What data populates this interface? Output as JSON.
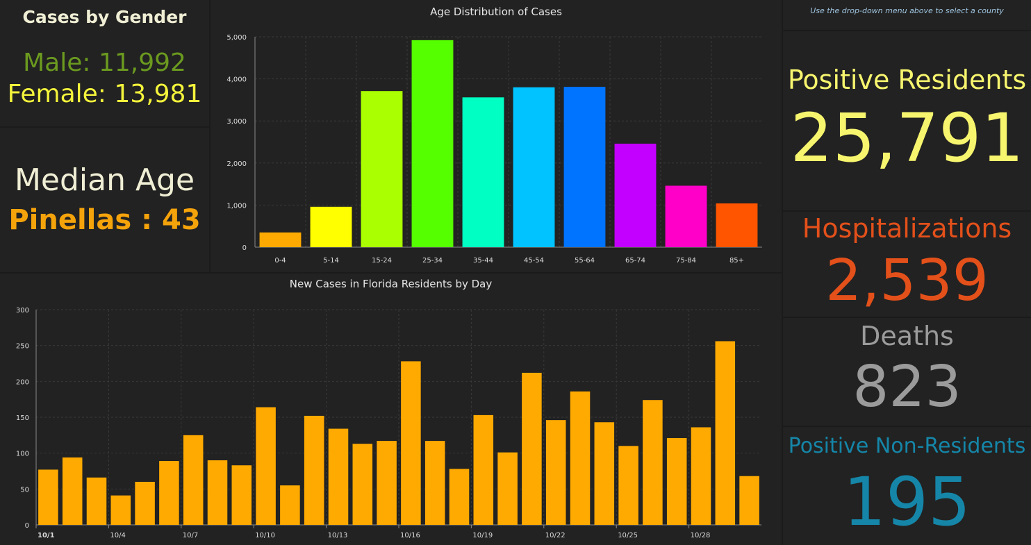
{
  "gender": {
    "title": "Cases by Gender",
    "male": "Male: 11,992",
    "female": "Female: 13,981",
    "male_color": "#6b9a1f",
    "female_color": "#f4f43c"
  },
  "median": {
    "label": "Median Age",
    "value": "Pinellas : 43",
    "value_color": "#f5a30b"
  },
  "hint": "Use the drop-down menu above to select a county",
  "positive": {
    "label": "Positive Residents",
    "value": "25,791",
    "color": "#f7f56e"
  },
  "hospitalizations": {
    "label": "Hospitalizations",
    "value": "2,539",
    "color": "#e4501a"
  },
  "deaths": {
    "label": "Deaths",
    "value": "823",
    "color": "#9b9b9b"
  },
  "non_residents": {
    "label": "Positive Non-Residents",
    "value": "195",
    "color": "#1586a8"
  },
  "chart_data": [
    {
      "type": "bar",
      "title": "Age Distribution of Cases",
      "categories": [
        "0-4",
        "5-14",
        "15-24",
        "25-34",
        "35-44",
        "45-54",
        "55-64",
        "65-74",
        "75-84",
        "85+"
      ],
      "values": [
        350,
        960,
        3710,
        4920,
        3560,
        3800,
        3810,
        2460,
        1460,
        1040
      ],
      "colors": [
        "#ffaa00",
        "#ffff00",
        "#aaff00",
        "#55ff00",
        "#00ffc3",
        "#00c3ff",
        "#0073ff",
        "#c300ff",
        "#ff00c8",
        "#ff5500"
      ],
      "ylim": [
        0,
        5000
      ],
      "yticks": [
        0,
        1000,
        2000,
        3000,
        4000,
        5000
      ],
      "ytick_labels": [
        "0",
        "1,000",
        "2,000",
        "3,000",
        "4,000",
        "5,000"
      ],
      "grid": true
    },
    {
      "type": "bar",
      "title": "New Cases in Florida Residents by Day",
      "x_tick_labels": [
        "10/1",
        "10/4",
        "10/7",
        "10/10",
        "10/13",
        "10/16",
        "10/19",
        "10/22",
        "10/25",
        "10/28"
      ],
      "x_tick_days": [
        1,
        4,
        7,
        10,
        13,
        16,
        19,
        22,
        25,
        28
      ],
      "days": [
        1,
        2,
        3,
        4,
        5,
        6,
        7,
        8,
        9,
        10,
        11,
        12,
        13,
        14,
        15,
        16,
        17,
        18,
        19,
        20,
        21,
        22,
        23,
        24,
        25,
        26,
        27,
        28,
        29,
        30
      ],
      "values": [
        77,
        94,
        66,
        41,
        60,
        89,
        125,
        90,
        83,
        164,
        55,
        152,
        134,
        113,
        117,
        228,
        117,
        78,
        153,
        101,
        212,
        146,
        186,
        143,
        110,
        174,
        121,
        136,
        256,
        68
      ],
      "color": "#ffaa00",
      "ylim": [
        0,
        300
      ],
      "yticks": [
        0,
        50,
        100,
        150,
        200,
        250,
        300
      ],
      "grid": true
    }
  ]
}
